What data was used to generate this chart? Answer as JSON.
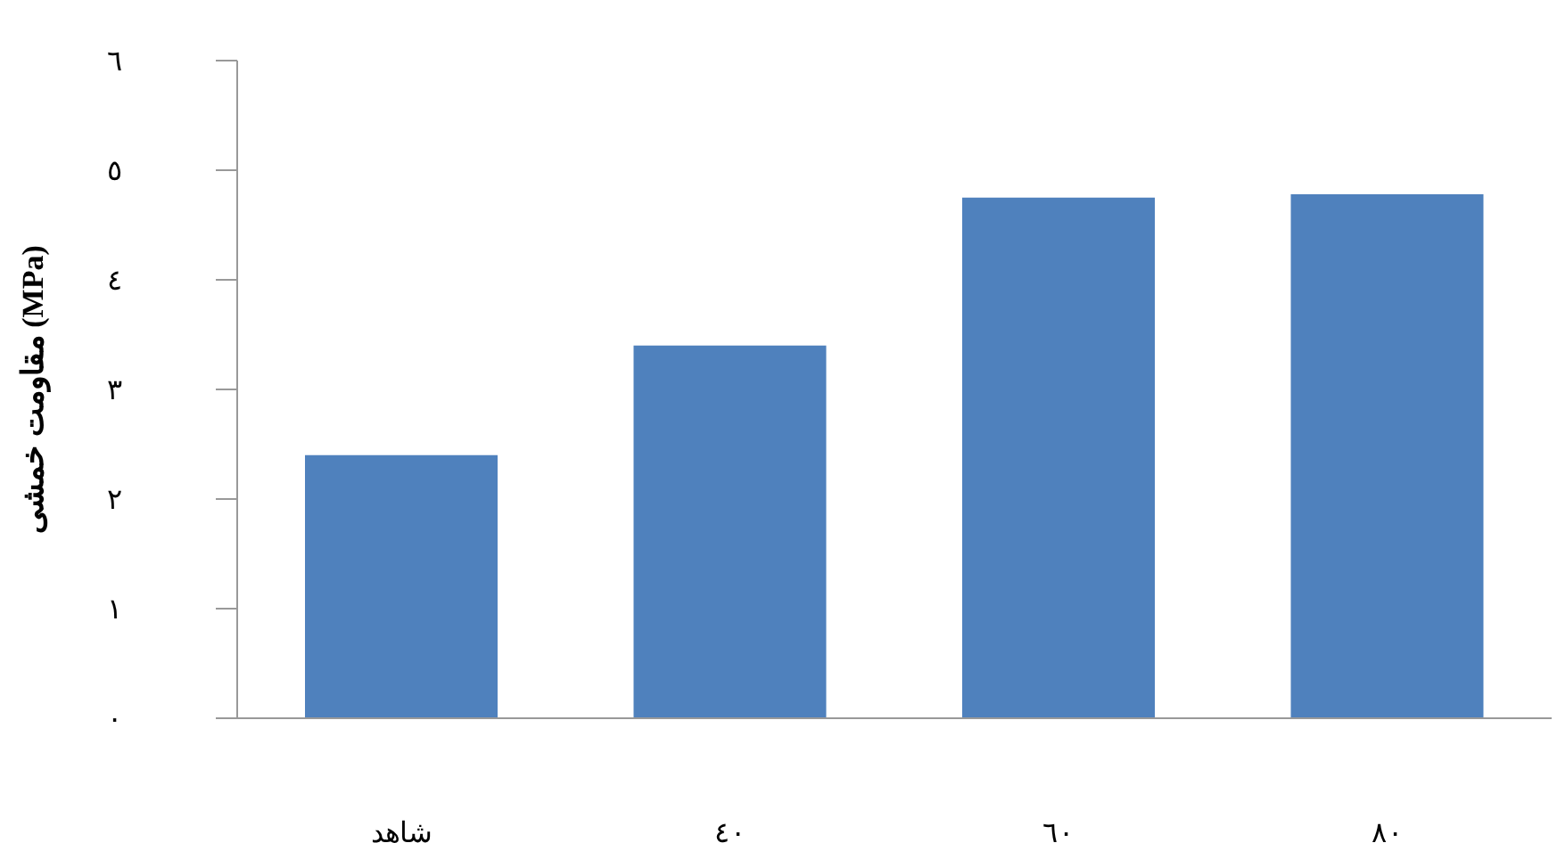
{
  "chart_data": {
    "type": "bar",
    "ylabel": "مقاومت خمشی (MPa)",
    "categories": [
      "شاهد",
      "٤٠",
      "٦٠",
      "٨٠"
    ],
    "values": [
      2.4,
      3.4,
      4.75,
      4.78
    ],
    "color": "#4f81bd",
    "ylim": [
      0,
      6
    ],
    "yticks": [
      {
        "value": 0,
        "label": "٠"
      },
      {
        "value": 1,
        "label": "١"
      },
      {
        "value": 2,
        "label": "٢"
      },
      {
        "value": 3,
        "label": "٣"
      },
      {
        "value": 4,
        "label": "٤"
      },
      {
        "value": 5,
        "label": "٥"
      },
      {
        "value": 6,
        "label": "٦"
      }
    ],
    "grid": false,
    "legend": false
  }
}
